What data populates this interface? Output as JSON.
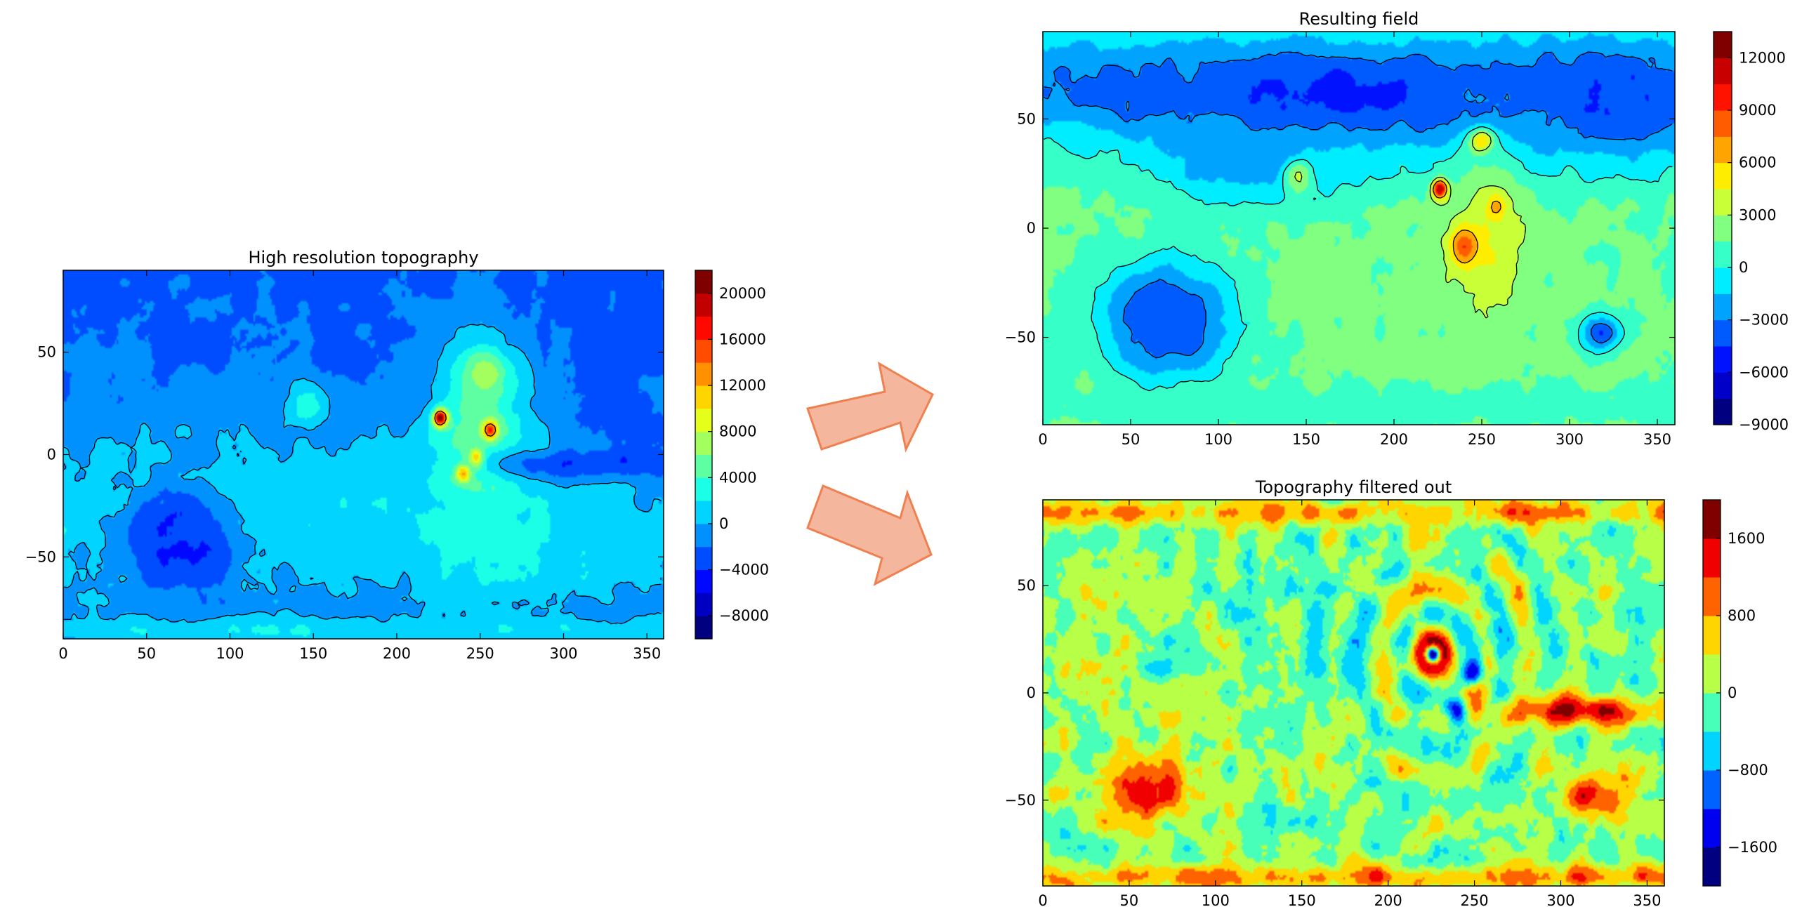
{
  "chart_data": [
    {
      "id": "panel-high-res",
      "type": "heatmap",
      "title": "High resolution topography",
      "xlabel": "",
      "ylabel": "",
      "xlim": [
        0,
        360
      ],
      "ylim": [
        -90,
        90
      ],
      "xticks": [
        0,
        50,
        100,
        150,
        200,
        250,
        300,
        350
      ],
      "yticks": [
        -50,
        0,
        50
      ],
      "colorbar": {
        "min": -10000,
        "max": 22000,
        "levels": 16,
        "ticks": [
          -8000,
          -4000,
          0,
          4000,
          8000,
          12000,
          16000,
          20000
        ],
        "tick_labels": [
          "−8000",
          "−4000",
          "0",
          "4000",
          "8000",
          "12000",
          "16000",
          "20000"
        ]
      },
      "colormap": "jet",
      "background_value": -3000,
      "features": [
        {
          "x": 60,
          "y": 62,
          "sx": 140,
          "sy": 22,
          "value": -2000
        },
        {
          "x": 150,
          "y": 58,
          "sx": 90,
          "sy": 20,
          "value": -2500
        },
        {
          "x": 140,
          "y": -28,
          "sx": 130,
          "sy": 35,
          "value": 1500
        },
        {
          "x": 40,
          "y": -35,
          "sx": 60,
          "sy": 30,
          "value": 1500
        },
        {
          "x": 300,
          "y": -45,
          "sx": 70,
          "sy": 30,
          "value": 1500
        },
        {
          "x": 68,
          "y": -42,
          "sx": 18,
          "sy": 14,
          "value": -5500
        },
        {
          "x": 70,
          "y": -42,
          "sx": 26,
          "sy": 20,
          "value": -3500
        },
        {
          "x": 250,
          "y": 5,
          "sx": 22,
          "sy": 40,
          "value": 5000
        },
        {
          "x": 252,
          "y": 40,
          "sx": 9,
          "sy": 8,
          "value": 8000
        },
        {
          "x": 226,
          "y": 18,
          "sx": 3,
          "sy": 3,
          "value": 21000
        },
        {
          "x": 248,
          "y": -2,
          "sx": 3,
          "sy": 3,
          "value": 16000
        },
        {
          "x": 256,
          "y": 12,
          "sx": 3,
          "sy": 3,
          "value": 16000
        },
        {
          "x": 240,
          "y": -9,
          "sx": 3,
          "sy": 3,
          "value": 16000
        },
        {
          "x": 146,
          "y": 24,
          "sx": 8,
          "sy": 7,
          "value": 3500
        },
        {
          "x": 310,
          "y": -5,
          "sx": 40,
          "sy": 5,
          "value": -4000
        },
        {
          "x": 180,
          "y": -86,
          "sx": 200,
          "sy": 5,
          "value": 2000
        }
      ],
      "contours": [
        {
          "level": 0,
          "style": "solid"
        },
        {
          "level": 12000,
          "style": "solid"
        }
      ]
    },
    {
      "id": "panel-resulting",
      "type": "heatmap",
      "title": "Resulting field",
      "xlabel": "",
      "ylabel": "",
      "xlim": [
        0,
        360
      ],
      "ylim": [
        -90,
        90
      ],
      "xticks": [
        0,
        50,
        100,
        150,
        200,
        250,
        300,
        350
      ],
      "yticks": [
        -50,
        0,
        50
      ],
      "colorbar": {
        "min": -9000,
        "max": 13500,
        "levels": 15,
        "ticks": [
          -9000,
          -6000,
          -3000,
          0,
          3000,
          6000,
          9000,
          12000
        ],
        "tick_labels": [
          "−9000",
          "−6000",
          "−3000",
          "0",
          "3000",
          "6000",
          "9000",
          "12000"
        ]
      },
      "colormap": "jet",
      "background_value": 1800,
      "features": [
        {
          "x": 160,
          "y": 62,
          "sx": 100,
          "sy": 20,
          "value": -5200
        },
        {
          "x": 330,
          "y": 60,
          "sx": 60,
          "sy": 22,
          "value": -4500
        },
        {
          "x": 30,
          "y": 65,
          "sx": 50,
          "sy": 16,
          "value": -3500
        },
        {
          "x": 120,
          "y": 30,
          "sx": 40,
          "sy": 12,
          "value": -2500
        },
        {
          "x": 70,
          "y": -42,
          "sx": 16,
          "sy": 12,
          "value": -7500
        },
        {
          "x": 70,
          "y": -42,
          "sx": 28,
          "sy": 20,
          "value": -3500
        },
        {
          "x": 318,
          "y": -48,
          "sx": 8,
          "sy": 6,
          "value": -4500
        },
        {
          "x": 252,
          "y": -8,
          "sx": 16,
          "sy": 24,
          "value": 4500
        },
        {
          "x": 240,
          "y": -8,
          "sx": 5,
          "sy": 6,
          "value": 9000
        },
        {
          "x": 258,
          "y": 10,
          "sx": 4,
          "sy": 4,
          "value": 7000
        },
        {
          "x": 226,
          "y": 18,
          "sx": 3,
          "sy": 3,
          "value": 12000
        },
        {
          "x": 250,
          "y": 40,
          "sx": 5,
          "sy": 4,
          "value": 6000
        },
        {
          "x": 146,
          "y": 24,
          "sx": 6,
          "sy": 6,
          "value": 3000
        },
        {
          "x": 180,
          "y": -82,
          "sx": 250,
          "sy": 6,
          "value": 600
        }
      ],
      "contours": [
        {
          "level": -3000,
          "style": "dashed"
        },
        {
          "level": 0,
          "style": "solid"
        },
        {
          "level": 3000,
          "style": "solid"
        },
        {
          "level": 6000,
          "style": "solid"
        }
      ]
    },
    {
      "id": "panel-filtered",
      "type": "heatmap",
      "title": "Topography filtered out",
      "xlabel": "",
      "ylabel": "",
      "xlim": [
        0,
        360
      ],
      "ylim": [
        -90,
        90
      ],
      "xticks": [
        0,
        50,
        100,
        150,
        200,
        250,
        300,
        350
      ],
      "yticks": [
        -50,
        0,
        50
      ],
      "colorbar": {
        "min": -2000,
        "max": 2000,
        "levels": 10,
        "ticks": [
          -1600,
          -800,
          0,
          800,
          1600
        ],
        "tick_labels": [
          "−1600",
          "−800",
          "0",
          "800",
          "1600"
        ]
      },
      "colormap": "jet",
      "background_value": 0,
      "noise_amplitude": 900,
      "features": [
        {
          "x": 226,
          "y": 18,
          "sx": 8,
          "sy": 8,
          "value": 1900
        },
        {
          "x": 226,
          "y": 18,
          "sx": 3,
          "sy": 3,
          "value": -1900
        },
        {
          "x": 250,
          "y": 10,
          "sx": 4,
          "sy": 4,
          "value": -1800
        },
        {
          "x": 240,
          "y": -8,
          "sx": 4,
          "sy": 4,
          "value": -1800
        },
        {
          "x": 310,
          "y": -8,
          "sx": 30,
          "sy": 5,
          "value": 1700
        },
        {
          "x": 62,
          "y": -46,
          "sx": 22,
          "sy": 12,
          "value": 1200
        },
        {
          "x": 320,
          "y": -48,
          "sx": 14,
          "sy": 8,
          "value": 1500
        },
        {
          "x": 180,
          "y": 84,
          "sx": 300,
          "sy": 4,
          "value": 900
        },
        {
          "x": 180,
          "y": -86,
          "sx": 300,
          "sy": 4,
          "value": 900
        }
      ],
      "contours": []
    }
  ],
  "arrows": [
    {
      "name": "arrow-to-resulting-field",
      "direction": "up-right",
      "fill": "#f4b69c",
      "stroke": "#ef8050"
    },
    {
      "name": "arrow-to-filtered-topography",
      "direction": "down-right",
      "fill": "#f4b69c",
      "stroke": "#ef8050"
    }
  ]
}
